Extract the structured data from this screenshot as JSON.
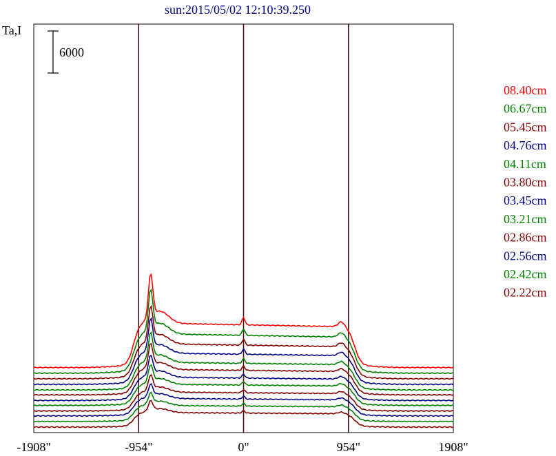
{
  "chart_data": {
    "type": "line",
    "title": "sun:2015/05/02 12:10:39.250",
    "ylabel": "Ta,I",
    "scale_bar_label": "6000",
    "x_ticks": [
      "-1908\"",
      "-954\"",
      "0\"",
      "954\"",
      "1908\""
    ],
    "x_tick_values": [
      -1908,
      -954,
      0,
      954,
      1908
    ],
    "xlim": [
      -1908,
      1908
    ],
    "vertical_markers": [
      -954,
      0,
      954
    ],
    "grid": false,
    "legend_position": "right",
    "colors": {
      "red": "#ff0000",
      "green": "#008000",
      "maroon": "#800000",
      "navy": "#000080",
      "axis": "#000000",
      "marker": "#400000"
    },
    "series": [
      {
        "name": "08.40cm",
        "color": "#ff0000",
        "baseline": 8000,
        "peak": 12300,
        "plateau": 6100
      },
      {
        "name": "06.67cm",
        "color": "#008000",
        "baseline": 7200,
        "peak": 11000,
        "plateau": 5400
      },
      {
        "name": "05.45cm",
        "color": "#800000",
        "baseline": 6400,
        "peak": 9500,
        "plateau": 4800
      },
      {
        "name": "04.76cm",
        "color": "#000080",
        "baseline": 5600,
        "peak": 8600,
        "plateau": 4300
      },
      {
        "name": "04.11cm",
        "color": "#008000",
        "baseline": 4800,
        "peak": 7500,
        "plateau": 3800
      },
      {
        "name": "03.80cm",
        "color": "#800000",
        "baseline": 4100,
        "peak": 6700,
        "plateau": 3500
      },
      {
        "name": "03.45cm",
        "color": "#000080",
        "baseline": 3300,
        "peak": 5900,
        "plateau": 3200
      },
      {
        "name": "03.21cm",
        "color": "#008000",
        "baseline": 2600,
        "peak": 5300,
        "plateau": 2900
      },
      {
        "name": "02.86cm",
        "color": "#800000",
        "baseline": 1800,
        "peak": 4700,
        "plateau": 2600
      },
      {
        "name": "02.56cm",
        "color": "#000080",
        "baseline": 1100,
        "peak": 4100,
        "plateau": 2400
      },
      {
        "name": "02.42cm",
        "color": "#008000",
        "baseline": 300,
        "peak": 3700,
        "plateau": 2200
      },
      {
        "name": "02.22cm",
        "color": "#800000",
        "baseline": -500,
        "peak": 3400,
        "plateau": 2000
      }
    ]
  }
}
